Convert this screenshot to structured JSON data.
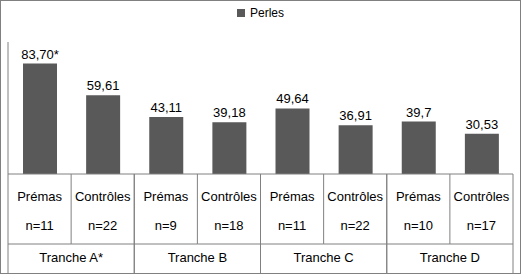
{
  "chart_data": {
    "type": "bar",
    "categories": [
      "Prémas",
      "Contrôles",
      "Prémas",
      "Contrôles",
      "Prémas",
      "Contrôles",
      "Prémas",
      "Contrôles"
    ],
    "sample_sizes": [
      "n=11",
      "n=22",
      "n=9",
      "n=18",
      "n=11",
      "n=22",
      "n=10",
      "n=17"
    ],
    "groups": [
      "Tranche A*",
      "Tranche B",
      "Tranche C",
      "Tranche D"
    ],
    "series": [
      {
        "name": "Perles",
        "color": "#595959",
        "values": [
          83.7,
          59.61,
          43.11,
          39.18,
          49.64,
          36.91,
          39.7,
          30.53
        ],
        "value_labels": [
          "83,70*",
          "59,61",
          "43,11",
          "39,18",
          "49,64",
          "36,91",
          "39,7",
          "30,53"
        ]
      }
    ],
    "ylim": [
      0,
      100
    ],
    "legend": "top",
    "data_labels": true,
    "tick_labels": "x",
    "grid": false
  }
}
